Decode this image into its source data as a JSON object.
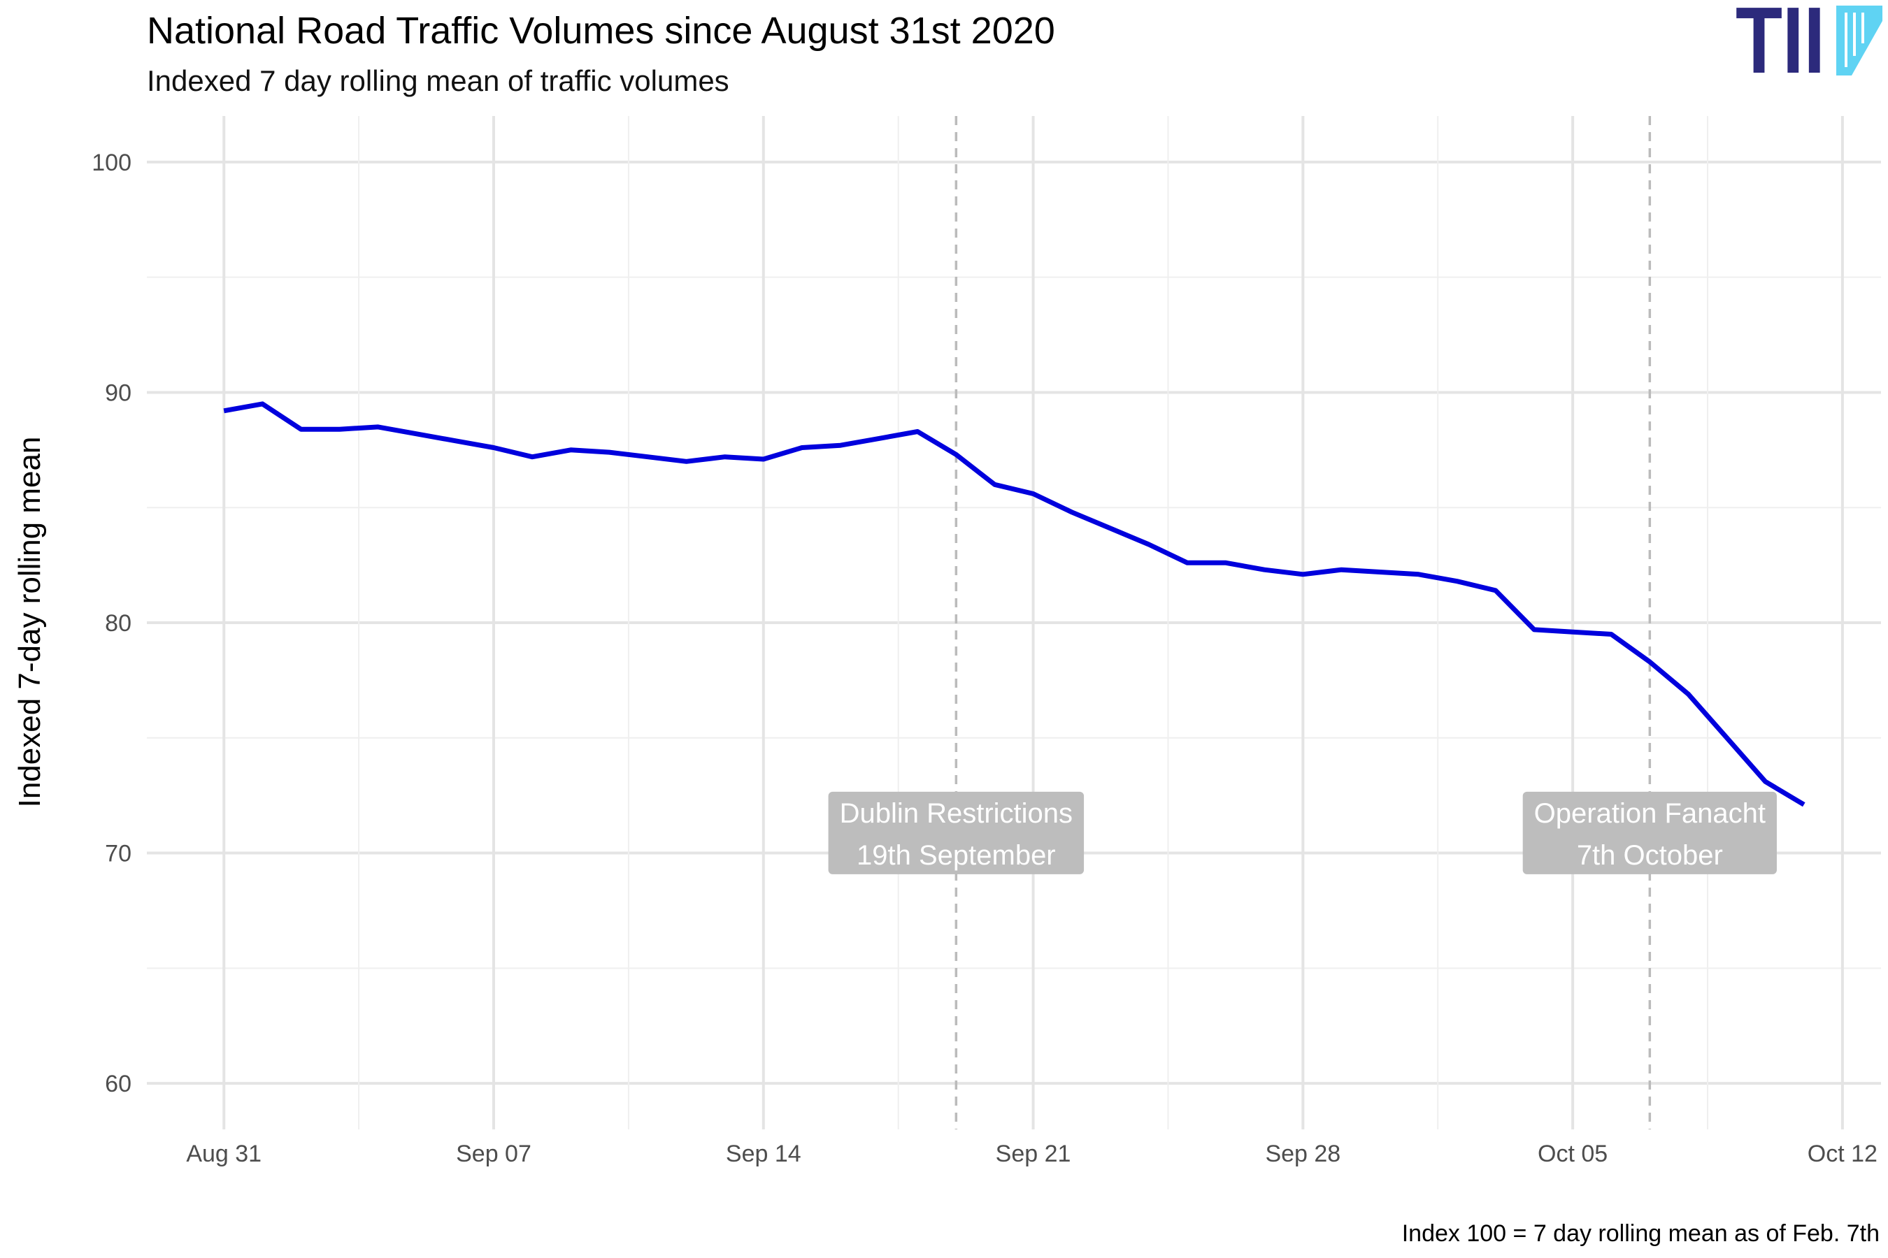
{
  "chart_data": {
    "type": "line",
    "title": "National Road Traffic Volumes since August 31st 2020",
    "subtitle": "Indexed 7 day rolling mean of traffic volumes",
    "ylabel": "Indexed 7-day rolling mean",
    "xlabel": "",
    "caption": "Index 100 = 7 day rolling mean as of Feb. 7th",
    "ylim": [
      58,
      102
    ],
    "xlim": [
      "2020-08-29",
      "2020-10-13"
    ],
    "y_ticks": [
      60,
      70,
      80,
      90,
      100
    ],
    "x_ticks": [
      {
        "date": "2020-08-31",
        "label": "Aug 31"
      },
      {
        "date": "2020-09-07",
        "label": "Sep 07"
      },
      {
        "date": "2020-09-14",
        "label": "Sep 14"
      },
      {
        "date": "2020-09-21",
        "label": "Sep 21"
      },
      {
        "date": "2020-09-28",
        "label": "Sep 28"
      },
      {
        "date": "2020-10-05",
        "label": "Oct 05"
      },
      {
        "date": "2020-10-12",
        "label": "Oct 12"
      }
    ],
    "grid": true,
    "series": [
      {
        "color": "#0000dd",
        "x": [
          "2020-08-31",
          "2020-09-01",
          "2020-09-02",
          "2020-09-03",
          "2020-09-04",
          "2020-09-05",
          "2020-09-06",
          "2020-09-07",
          "2020-09-08",
          "2020-09-09",
          "2020-09-10",
          "2020-09-11",
          "2020-09-12",
          "2020-09-13",
          "2020-09-14",
          "2020-09-15",
          "2020-09-16",
          "2020-09-17",
          "2020-09-18",
          "2020-09-19",
          "2020-09-20",
          "2020-09-21",
          "2020-09-22",
          "2020-09-23",
          "2020-09-24",
          "2020-09-25",
          "2020-09-26",
          "2020-09-27",
          "2020-09-28",
          "2020-09-29",
          "2020-09-30",
          "2020-10-01",
          "2020-10-02",
          "2020-10-03",
          "2020-10-04",
          "2020-10-05",
          "2020-10-06",
          "2020-10-07",
          "2020-10-08",
          "2020-10-09",
          "2020-10-10",
          "2020-10-11"
        ],
        "values": [
          89.2,
          89.5,
          88.4,
          88.4,
          88.5,
          88.2,
          87.9,
          87.6,
          87.2,
          87.5,
          87.4,
          87.2,
          87.0,
          87.2,
          87.1,
          87.6,
          87.7,
          88.0,
          88.3,
          87.3,
          86.0,
          85.6,
          84.8,
          84.1,
          83.4,
          82.6,
          82.6,
          82.3,
          82.1,
          82.3,
          82.2,
          82.1,
          81.8,
          81.4,
          79.7,
          79.6,
          79.5,
          78.3,
          76.9,
          75.0,
          73.1,
          72.1
        ]
      }
    ],
    "annotations": [
      {
        "date": "2020-09-19",
        "line1": "Dublin Restrictions",
        "line2": "19th September",
        "y": 70.9
      },
      {
        "date": "2020-10-07",
        "line1": "Operation Fanacht",
        "line2": "7th October",
        "y": 70.9
      }
    ],
    "colors": {
      "line": "#0000dd",
      "vline": "#bbbbbb",
      "label_box": "#bdbdbd",
      "logo_dark": "#2c2a7c",
      "logo_light": "#5fd3f3"
    }
  },
  "logo": {
    "text": "TII"
  }
}
